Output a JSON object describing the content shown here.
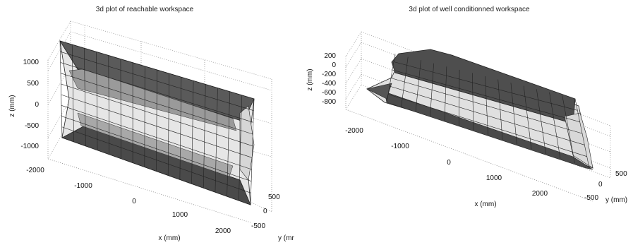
{
  "chart_data": [
    {
      "type": "surface3d",
      "title": "3d plot of reachable workspace",
      "xlabel": "x (mm)",
      "ylabel": "y (mr",
      "zlabel": "z (mm)",
      "x_ticks": [
        "-2000",
        "-1000",
        "0",
        "1000",
        "2000"
      ],
      "y_ticks": [
        "500",
        "0",
        "-500"
      ],
      "z_ticks": [
        "1000",
        "500",
        "0",
        "-500",
        "-1000"
      ],
      "xlim": [
        -2300,
        2300
      ],
      "ylim": [
        -700,
        700
      ],
      "zlim": [
        -1300,
        1300
      ],
      "grid": true,
      "surface": {
        "length_x": [
          -2100,
          2100
        ],
        "radius_y": 550,
        "half_height_z": 1150,
        "colormap": "gray"
      }
    },
    {
      "type": "surface3d",
      "title": "3d plot of well conditionned workspace",
      "xlabel": "x (mm)",
      "ylabel": "y (mm)",
      "zlabel": "z (mm)",
      "x_ticks": [
        "-2000",
        "-1000",
        "0",
        "1000",
        "2000"
      ],
      "y_ticks": [
        "500",
        "0",
        "-500"
      ],
      "z_ticks": [
        "200",
        "0",
        "-200",
        "-400",
        "-600",
        "-800"
      ],
      "xlim": [
        -2300,
        2300
      ],
      "ylim": [
        -700,
        700
      ],
      "zlim": [
        -900,
        300
      ],
      "grid": true,
      "surface": {
        "length_x": [
          -2100,
          2100
        ],
        "radius_y": 450,
        "z_range": [
          -800,
          200
        ],
        "colormap": "gray"
      }
    }
  ]
}
